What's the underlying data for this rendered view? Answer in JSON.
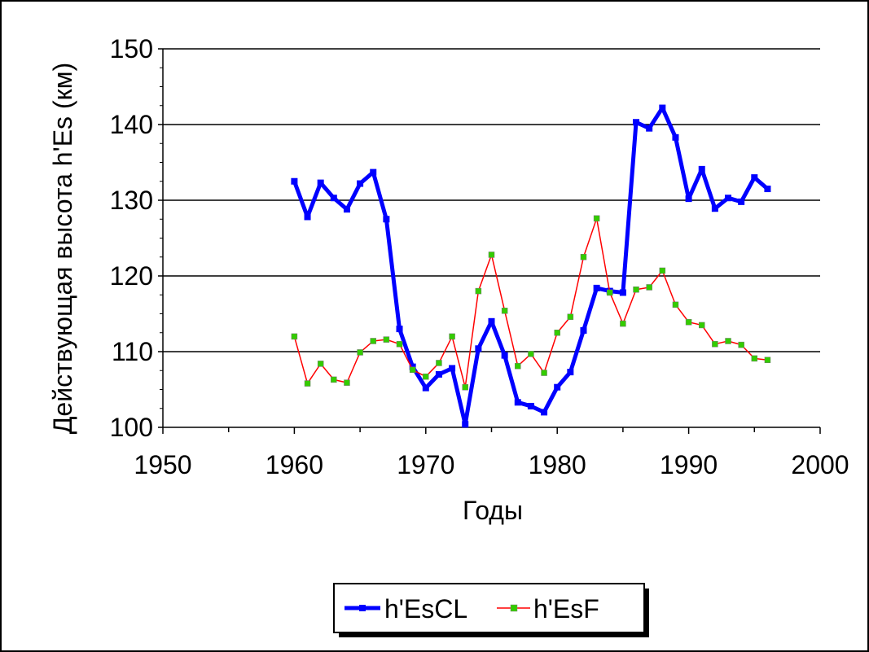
{
  "chart_data": {
    "type": "line",
    "xlabel": "Годы",
    "ylabel": "Действующая высота h'Es  (км)",
    "xlim": [
      1950,
      2000
    ],
    "ylim": [
      100,
      150
    ],
    "x_ticks": [
      "1950",
      "1960",
      "1970",
      "1980",
      "1990",
      "2000"
    ],
    "y_ticks": [
      "100",
      "110",
      "120",
      "130",
      "140",
      "150"
    ],
    "grid": "horizontal major lines",
    "legend_position": "bottom-center",
    "series": [
      {
        "name": "h'EsCL",
        "color": "#0000FF",
        "style": "thick line, square markers",
        "points": [
          [
            1960,
            132.5
          ],
          [
            1961,
            127.8
          ],
          [
            1962,
            132.3
          ],
          [
            1963,
            130.3
          ],
          [
            1964,
            128.8
          ],
          [
            1965,
            132.2
          ],
          [
            1966,
            133.7
          ],
          [
            1967,
            127.5
          ],
          [
            1968,
            113.0
          ],
          [
            1969,
            108.0
          ],
          [
            1970,
            105.2
          ],
          [
            1971,
            107.0
          ],
          [
            1972,
            107.8
          ],
          [
            1973,
            100.4
          ],
          [
            1974,
            110.4
          ],
          [
            1975,
            114.0
          ],
          [
            1976,
            109.5
          ],
          [
            1977,
            103.3
          ],
          [
            1978,
            102.8
          ],
          [
            1979,
            102.0
          ],
          [
            1980,
            105.3
          ],
          [
            1981,
            107.3
          ],
          [
            1982,
            112.8
          ],
          [
            1983,
            118.4
          ],
          [
            1984,
            118.0
          ],
          [
            1985,
            117.8
          ],
          [
            1986,
            140.3
          ],
          [
            1987,
            139.5
          ],
          [
            1988,
            142.2
          ],
          [
            1989,
            138.3
          ],
          [
            1990,
            130.2
          ],
          [
            1991,
            134.1
          ],
          [
            1992,
            128.9
          ],
          [
            1993,
            130.3
          ],
          [
            1994,
            129.8
          ],
          [
            1995,
            133.0
          ],
          [
            1996,
            131.5
          ]
        ]
      },
      {
        "name": "h'EsF",
        "color": "#FF0000",
        "marker_color": "#33CC00",
        "style": "thin line, green square markers",
        "points": [
          [
            1960,
            112.0
          ],
          [
            1961,
            105.8
          ],
          [
            1962,
            108.4
          ],
          [
            1963,
            106.3
          ],
          [
            1964,
            105.9
          ],
          [
            1965,
            109.9
          ],
          [
            1966,
            111.4
          ],
          [
            1967,
            111.6
          ],
          [
            1968,
            111.0
          ],
          [
            1969,
            107.6
          ],
          [
            1970,
            106.7
          ],
          [
            1971,
            108.5
          ],
          [
            1972,
            112.0
          ],
          [
            1973,
            105.3
          ],
          [
            1974,
            118.0
          ],
          [
            1975,
            122.8
          ],
          [
            1976,
            115.4
          ],
          [
            1977,
            108.1
          ],
          [
            1978,
            109.7
          ],
          [
            1979,
            107.2
          ],
          [
            1980,
            112.5
          ],
          [
            1981,
            114.6
          ],
          [
            1982,
            122.5
          ],
          [
            1983,
            127.6
          ],
          [
            1984,
            117.8
          ],
          [
            1985,
            113.7
          ],
          [
            1986,
            118.2
          ],
          [
            1987,
            118.5
          ],
          [
            1988,
            120.7
          ],
          [
            1989,
            116.2
          ],
          [
            1990,
            113.9
          ],
          [
            1991,
            113.5
          ],
          [
            1992,
            111.0
          ],
          [
            1993,
            111.4
          ],
          [
            1994,
            110.9
          ],
          [
            1995,
            109.1
          ],
          [
            1996,
            108.9
          ]
        ]
      }
    ]
  }
}
